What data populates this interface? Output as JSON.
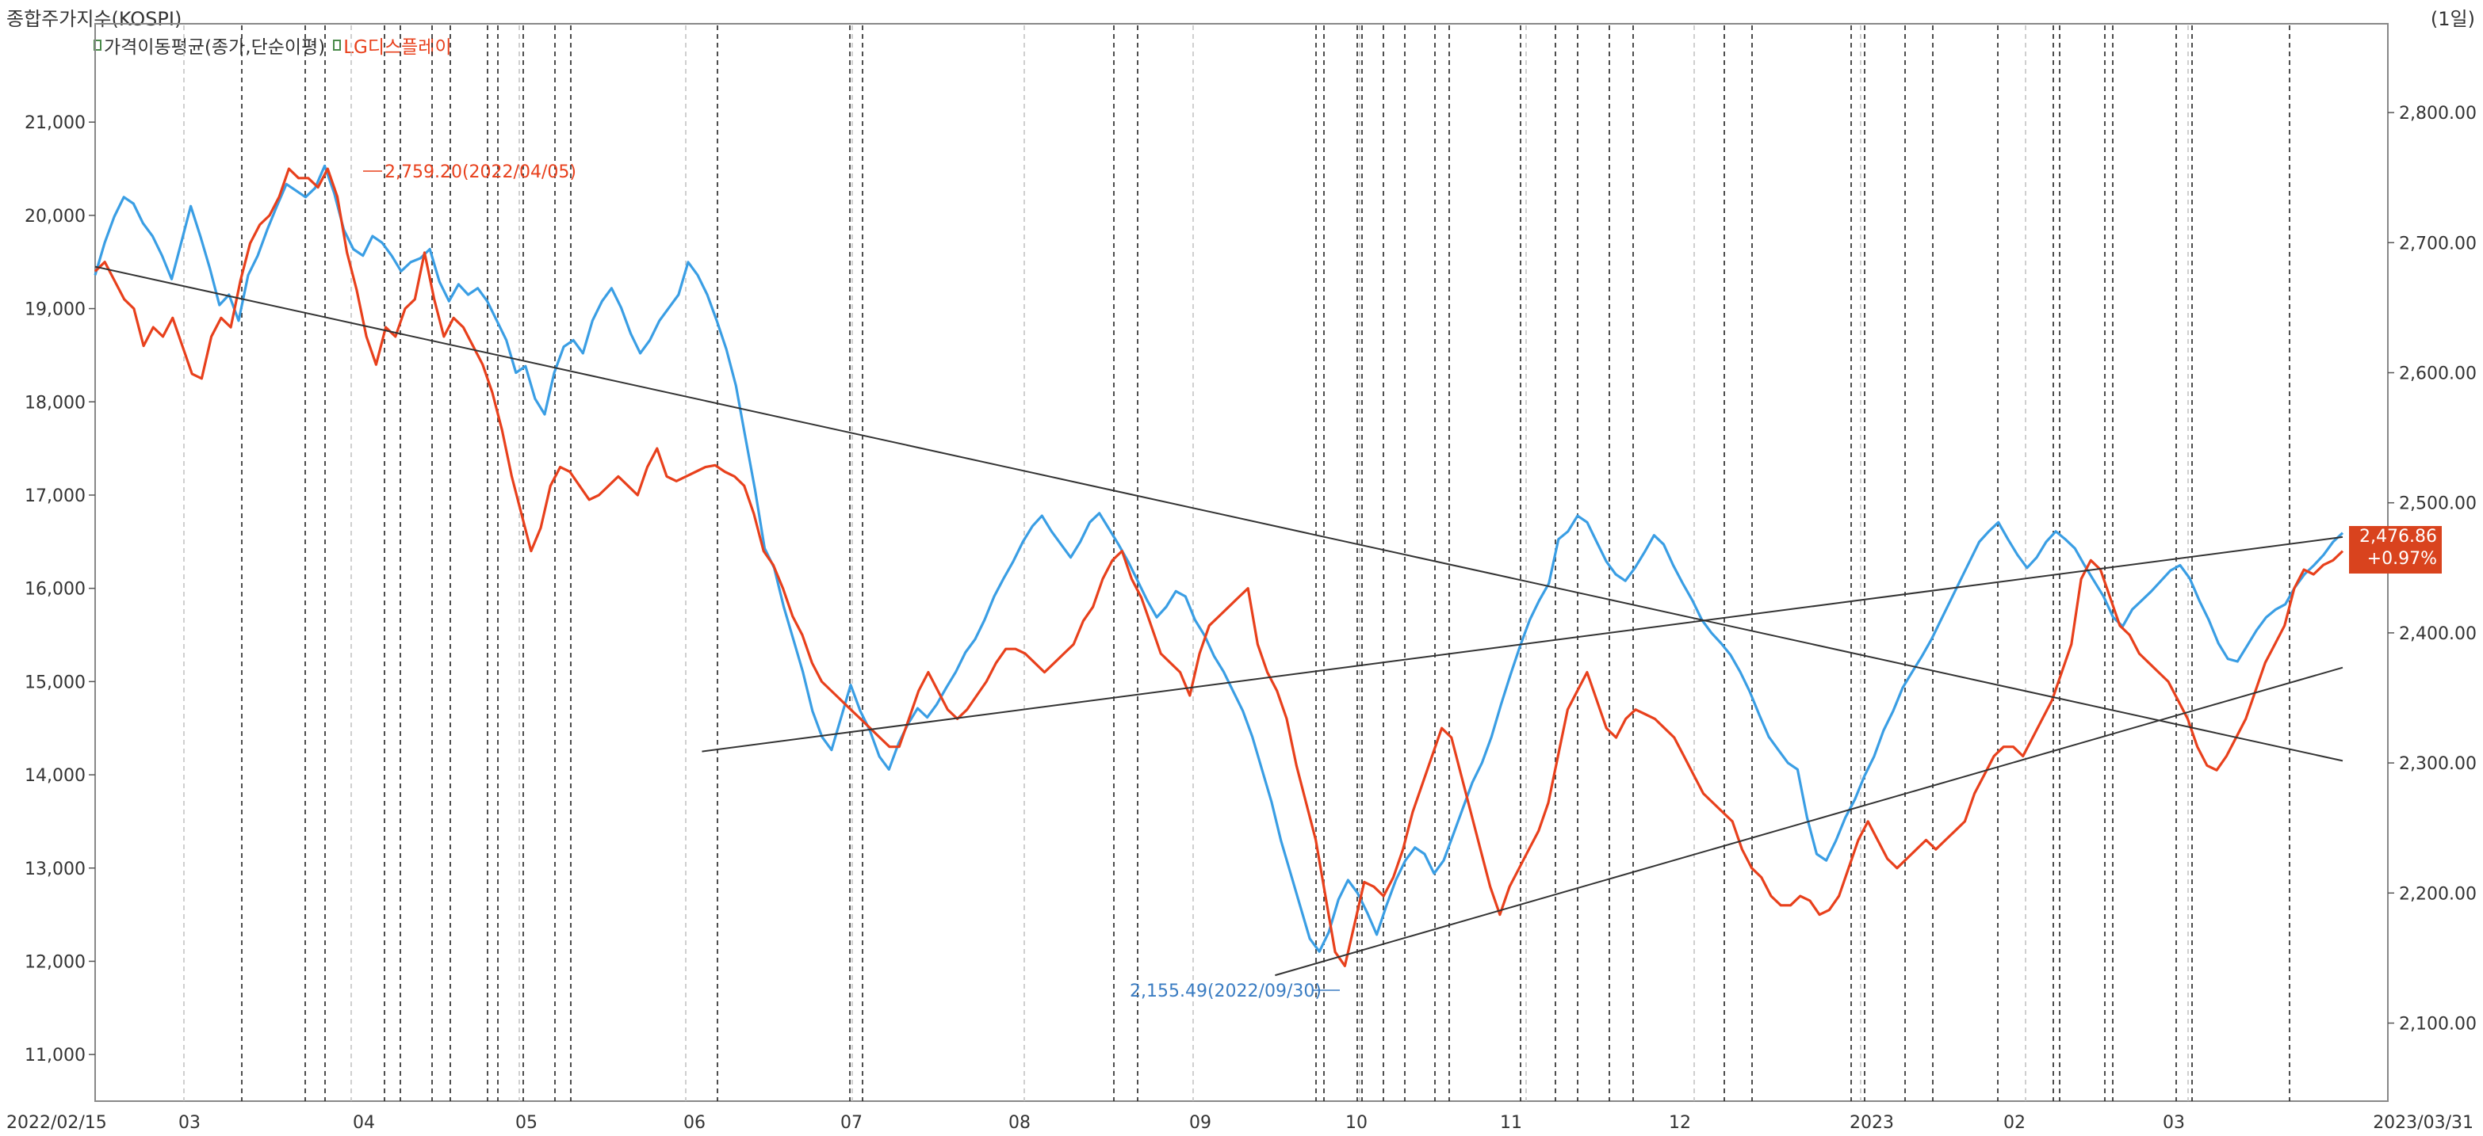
{
  "header": {
    "title": "종합주가지수(KOSPI)",
    "period": "(1일)"
  },
  "legend": [
    {
      "label": "가격이동평균(종가,단순이평)",
      "color": "#333333"
    },
    {
      "label": "LG디스플레이",
      "color": "#e8401c"
    }
  ],
  "last_tag": {
    "value": "2,476.86",
    "change": "+0.97%"
  },
  "annotations": {
    "high": "2,759.20(2022/04/05)",
    "low": "2,155.49(2022/09/30)"
  },
  "colors": {
    "kospi": "#3a9ee4",
    "lgd": "#e8401c",
    "trend": "#333333",
    "tag": "#d9431e"
  },
  "chart_data": {
    "type": "line",
    "x_start": "2022/02/15",
    "x_end": "2023/03/31",
    "x_ticks": [
      "2022/02/15",
      "03",
      "04",
      "05",
      "06",
      "07",
      "08",
      "09",
      "10",
      "11",
      "12",
      "2023",
      "02",
      "03",
      "2023/03/31"
    ],
    "left_axis": {
      "ticks": [
        "11,000",
        "12,000",
        "13,000",
        "14,000",
        "15,000",
        "16,000",
        "17,000",
        "18,000",
        "19,000",
        "20,000",
        "21,000"
      ],
      "ylim": [
        10500,
        21800
      ]
    },
    "right_axis": {
      "ticks": [
        "2,100.00",
        "2,200.00",
        "2,300.00",
        "2,400.00",
        "2,500.00",
        "2,600.00",
        "2,700.00",
        "2,800.00"
      ],
      "ylim": [
        2040,
        2850
      ]
    },
    "series": [
      {
        "name": "종합주가지수(KOSPI)",
        "axis": "right",
        "values": [
          2675,
          2700,
          2720,
          2735,
          2730,
          2715,
          2705,
          2690,
          2672,
          2700,
          2728,
          2705,
          2680,
          2652,
          2660,
          2640,
          2675,
          2690,
          2710,
          2728,
          2745,
          2740,
          2735,
          2742,
          2759,
          2738,
          2710,
          2695,
          2690,
          2705,
          2700,
          2690,
          2678,
          2685,
          2688,
          2695,
          2670,
          2655,
          2668,
          2660,
          2665,
          2655,
          2640,
          2625,
          2600,
          2605,
          2580,
          2568,
          2600,
          2620,
          2625,
          2615,
          2640,
          2655,
          2665,
          2650,
          2630,
          2615,
          2625,
          2640,
          2650,
          2660,
          2685,
          2675,
          2660,
          2640,
          2618,
          2590,
          2550,
          2510,
          2465,
          2450,
          2420,
          2395,
          2370,
          2340,
          2320,
          2310,
          2335,
          2360,
          2340,
          2325,
          2305,
          2295,
          2315,
          2330,
          2342,
          2335,
          2345,
          2358,
          2370,
          2385,
          2395,
          2410,
          2428,
          2442,
          2455,
          2470,
          2482,
          2490,
          2478,
          2468,
          2458,
          2470,
          2485,
          2492,
          2480,
          2468,
          2455,
          2440,
          2425,
          2412,
          2420,
          2432,
          2428,
          2410,
          2398,
          2382,
          2370,
          2355,
          2340,
          2320,
          2295,
          2270,
          2240,
          2215,
          2190,
          2165,
          2155,
          2170,
          2195,
          2210,
          2200,
          2185,
          2168,
          2190,
          2210,
          2225,
          2235,
          2230,
          2215,
          2225,
          2245,
          2265,
          2285,
          2300,
          2320,
          2345,
          2368,
          2390,
          2410,
          2425,
          2438,
          2472,
          2478,
          2490,
          2485,
          2470,
          2455,
          2445,
          2440,
          2450,
          2462,
          2475,
          2468,
          2452,
          2438,
          2425,
          2410,
          2400,
          2392,
          2383,
          2370,
          2355,
          2337,
          2320,
          2310,
          2300,
          2295,
          2258,
          2230,
          2225,
          2240,
          2258,
          2272,
          2290,
          2305,
          2325,
          2340,
          2358,
          2370,
          2382,
          2395,
          2410,
          2425,
          2440,
          2455,
          2470,
          2478,
          2485,
          2472,
          2460,
          2450,
          2458,
          2470,
          2478,
          2472,
          2465,
          2452,
          2440,
          2428,
          2412,
          2405,
          2418,
          2425,
          2432,
          2440,
          2448,
          2452,
          2442,
          2425,
          2410,
          2392,
          2380,
          2378,
          2390,
          2402,
          2412,
          2418,
          2422,
          2435,
          2445,
          2452,
          2460,
          2470,
          2476.86
        ]
      },
      {
        "name": "LG디스플레이",
        "axis": "left",
        "values": [
          19400,
          19500,
          19300,
          19100,
          19000,
          18600,
          18800,
          18700,
          18900,
          18600,
          18300,
          18250,
          18700,
          18900,
          18800,
          19300,
          19700,
          19900,
          20000,
          20200,
          20500,
          20400,
          20400,
          20300,
          20500,
          20200,
          19600,
          19200,
          18700,
          18400,
          18800,
          18700,
          19000,
          19100,
          19600,
          19100,
          18700,
          18900,
          18800,
          18600,
          18400,
          18100,
          17700,
          17200,
          16800,
          16400,
          16650,
          17100,
          17300,
          17250,
          17100,
          16950,
          17000,
          17100,
          17200,
          17100,
          17000,
          17300,
          17500,
          17200,
          17150,
          17200,
          17250,
          17300,
          17320,
          17250,
          17200,
          17100,
          16800,
          16400,
          16250,
          16000,
          15700,
          15500,
          15200,
          15000,
          14900,
          14800,
          14700,
          14600,
          14500,
          14400,
          14300,
          14300,
          14600,
          14900,
          15100,
          14900,
          14700,
          14600,
          14700,
          14850,
          15000,
          15200,
          15350,
          15350,
          15300,
          15200,
          15100,
          15200,
          15300,
          15400,
          15650,
          15800,
          16100,
          16300,
          16400,
          16100,
          15900,
          15600,
          15300,
          15200,
          15100,
          14850,
          15300,
          15600,
          15700,
          15800,
          15900,
          16000,
          15400,
          15100,
          14900,
          14600,
          14100,
          13700,
          13300,
          12700,
          12100,
          11950,
          12400,
          12850,
          12800,
          12700,
          12900,
          13200,
          13600,
          13900,
          14200,
          14500,
          14400,
          14000,
          13600,
          13200,
          12800,
          12500,
          12800,
          13000,
          13200,
          13400,
          13700,
          14200,
          14700,
          14900,
          15100,
          14800,
          14500,
          14400,
          14600,
          14700,
          14650,
          14600,
          14500,
          14400,
          14200,
          14000,
          13800,
          13700,
          13600,
          13500,
          13200,
          13000,
          12900,
          12700,
          12600,
          12600,
          12700,
          12650,
          12500,
          12550,
          12700,
          13000,
          13300,
          13500,
          13300,
          13100,
          13000,
          13100,
          13200,
          13300,
          13200,
          13300,
          13400,
          13500,
          13800,
          14000,
          14200,
          14300,
          14300,
          14200,
          14400,
          14600,
          14800,
          15100,
          15400,
          16100,
          16300,
          16200,
          15900,
          15600,
          15500,
          15300,
          15200,
          15100,
          15000,
          14800,
          14600,
          14300,
          14100,
          14050,
          14200,
          14400,
          14600,
          14900,
          15200,
          15400,
          15600,
          16000,
          16200,
          16150,
          16250,
          16300,
          16400
        ]
      },
      {
        "name": "",
        "axis": "left",
        "kind": "trendline",
        "x": [
          0,
          1
        ],
        "values": [
          19450,
          14150
        ]
      },
      {
        "name": "",
        "axis": "left",
        "kind": "trendline",
        "x": [
          0.27,
          1
        ],
        "values": [
          14250,
          16550
        ]
      },
      {
        "name": "",
        "axis": "left",
        "kind": "trendline",
        "x": [
          0.525,
          1
        ],
        "values": [
          11850,
          15150
        ]
      }
    ],
    "grid": "vertical dashed",
    "legend": "top-left"
  }
}
